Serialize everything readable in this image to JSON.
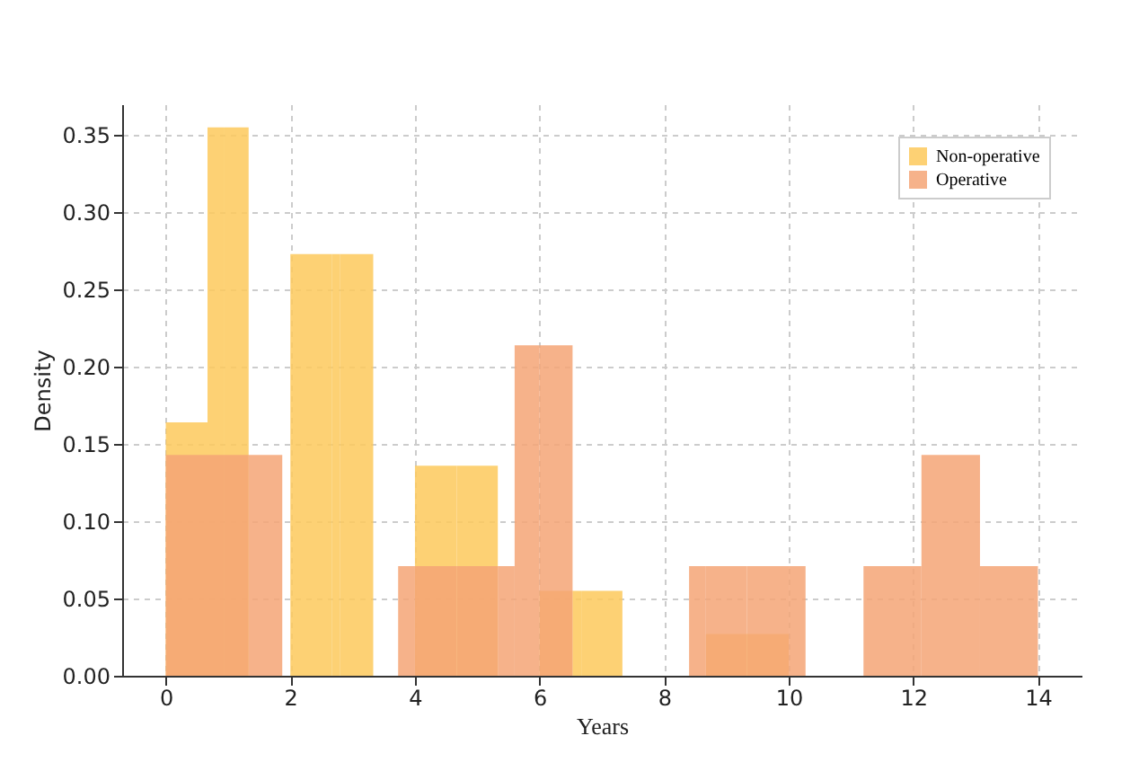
{
  "chart_data": {
    "type": "histogram",
    "xlabel": "Years",
    "ylabel": "Density",
    "bins": [
      0,
      0.67,
      0.93,
      1.33,
      1.87,
      2,
      2.67,
      2.8,
      3.33,
      3.73,
      4,
      4.67,
      5.33,
      5.6,
      6,
      6.53,
      6.67,
      7.33,
      8.4,
      8.67,
      9.33,
      10,
      10.27,
      11.2,
      12.13,
      13.07,
      14
    ],
    "series": [
      {
        "name": "Non-operative",
        "color": "#fdc95c",
        "values": [
          0.164,
          0.355,
          0.355,
          null,
          null,
          0.273,
          0.273,
          0.273,
          null,
          null,
          0.136,
          0.136,
          null,
          null,
          0.055,
          0.055,
          0.055,
          null,
          null,
          0.027,
          0.027,
          null,
          null,
          null,
          null,
          null
        ]
      },
      {
        "name": "Operative",
        "color": "#f4a476",
        "values": [
          0.143,
          0.143,
          0.143,
          0.143,
          null,
          null,
          null,
          null,
          null,
          0.071,
          0.071,
          0.071,
          0.071,
          0.214,
          0.214,
          null,
          null,
          null,
          0.071,
          0.071,
          0.071,
          0.071,
          null,
          0.071,
          0.143,
          0.071
        ]
      }
    ],
    "xlim": [
      -0.7,
      14.7
    ],
    "xticks": [
      0,
      2,
      4,
      6,
      8,
      10,
      12,
      14
    ],
    "ylim": [
      0,
      0.37
    ],
    "yticks": [
      {
        "value": 0,
        "label": "0.00"
      },
      {
        "value": 0.05,
        "label": "0.05"
      },
      {
        "value": 0.1,
        "label": "0.10"
      },
      {
        "value": 0.15,
        "label": "0.15"
      },
      {
        "value": 0.2,
        "label": "0.20"
      },
      {
        "value": 0.25,
        "label": "0.25"
      },
      {
        "value": 0.3,
        "label": "0.30"
      },
      {
        "value": 0.35,
        "label": "0.35"
      }
    ],
    "grid": true,
    "legend": "top right"
  }
}
